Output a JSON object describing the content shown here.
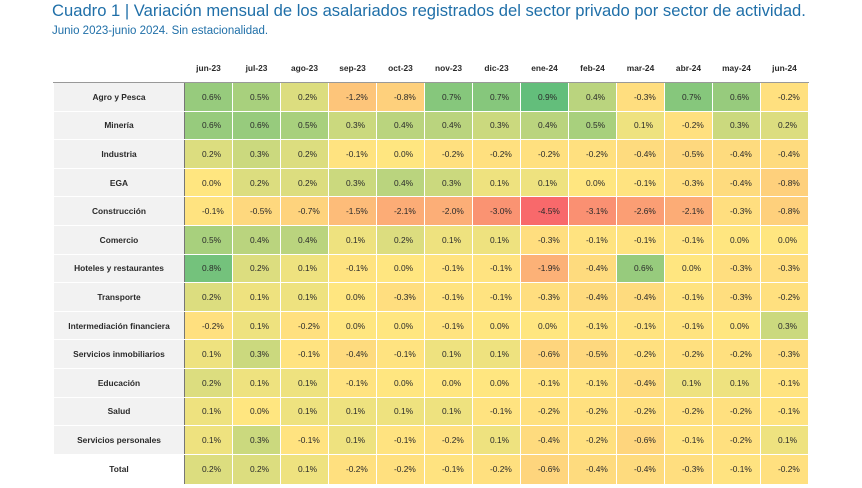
{
  "chart_data": {
    "type": "heatmap",
    "title": "Cuadro 1 | Variación mensual de los asalariados registrados del sector privado por sector de actividad.",
    "subtitle": "Junio 2023-junio 2024. Sin estacionalidad.",
    "columns": [
      "jun-23",
      "jul-23",
      "ago-23",
      "sep-23",
      "oct-23",
      "nov-23",
      "dic-23",
      "ene-24",
      "feb-24",
      "mar-24",
      "abr-24",
      "may-24",
      "jun-24"
    ],
    "rows": [
      {
        "label": "Agro y Pesca",
        "values": [
          0.6,
          0.5,
          0.2,
          -1.2,
          -0.8,
          0.7,
          0.7,
          0.9,
          0.4,
          -0.3,
          0.7,
          0.6,
          -0.2
        ]
      },
      {
        "label": "Minería",
        "values": [
          0.6,
          0.6,
          0.5,
          0.3,
          0.4,
          0.4,
          0.3,
          0.4,
          0.5,
          0.1,
          -0.2,
          0.3,
          0.2
        ]
      },
      {
        "label": "Industria",
        "values": [
          0.2,
          0.3,
          0.2,
          -0.1,
          0.0,
          -0.2,
          -0.2,
          -0.2,
          -0.2,
          -0.4,
          -0.5,
          -0.4,
          -0.4
        ]
      },
      {
        "label": "EGA",
        "values": [
          0.0,
          0.2,
          0.2,
          0.3,
          0.4,
          0.3,
          0.1,
          0.1,
          0.0,
          -0.1,
          -0.3,
          -0.4,
          -0.8
        ]
      },
      {
        "label": "Construcción",
        "values": [
          -0.1,
          -0.5,
          -0.7,
          -1.5,
          -2.1,
          -2.0,
          -3.0,
          -4.5,
          -3.1,
          -2.6,
          -2.1,
          -0.3,
          -0.8
        ]
      },
      {
        "label": "Comercio",
        "values": [
          0.5,
          0.4,
          0.4,
          0.1,
          0.2,
          0.1,
          0.1,
          -0.3,
          -0.1,
          -0.1,
          -0.1,
          0.0,
          0.0
        ]
      },
      {
        "label": "Hoteles y restaurantes",
        "values": [
          0.8,
          0.2,
          0.1,
          -0.1,
          0.0,
          -0.1,
          -0.1,
          -1.9,
          -0.4,
          0.6,
          0.0,
          -0.3,
          -0.3
        ]
      },
      {
        "label": "Transporte",
        "values": [
          0.2,
          0.1,
          0.1,
          0.0,
          -0.3,
          -0.1,
          -0.1,
          -0.3,
          -0.4,
          -0.4,
          -0.1,
          -0.3,
          -0.2
        ]
      },
      {
        "label": "Intermediación financiera",
        "values": [
          -0.2,
          0.1,
          -0.2,
          0.0,
          0.0,
          -0.1,
          0.0,
          0.0,
          -0.1,
          -0.1,
          -0.1,
          0.0,
          0.3
        ]
      },
      {
        "label": "Servicios inmobiliarios",
        "values": [
          0.1,
          0.3,
          -0.1,
          -0.4,
          -0.1,
          0.1,
          0.1,
          -0.6,
          -0.5,
          -0.2,
          -0.2,
          -0.2,
          -0.3
        ]
      },
      {
        "label": "Educación",
        "values": [
          0.2,
          0.1,
          0.1,
          -0.1,
          0.0,
          0.0,
          0.0,
          -0.1,
          -0.1,
          -0.4,
          0.1,
          0.1,
          -0.1
        ]
      },
      {
        "label": "Salud",
        "values": [
          0.1,
          0.0,
          0.1,
          0.1,
          0.1,
          0.1,
          -0.1,
          -0.2,
          -0.2,
          -0.2,
          -0.2,
          -0.2,
          -0.1
        ]
      },
      {
        "label": "Servicios personales",
        "values": [
          0.1,
          0.3,
          -0.1,
          0.1,
          -0.1,
          -0.2,
          0.1,
          -0.4,
          -0.2,
          -0.6,
          -0.1,
          -0.2,
          0.1
        ]
      }
    ],
    "total": {
      "label": "Total",
      "values": [
        0.2,
        0.2,
        0.1,
        -0.2,
        -0.2,
        -0.1,
        -0.2,
        -0.6,
        -0.4,
        -0.4,
        -0.3,
        -0.1,
        -0.2
      ]
    },
    "unit_suffix": "%",
    "colors": {
      "positive": "#63be7b",
      "neutral": "#ffe680",
      "negative": "#f8696b"
    }
  }
}
